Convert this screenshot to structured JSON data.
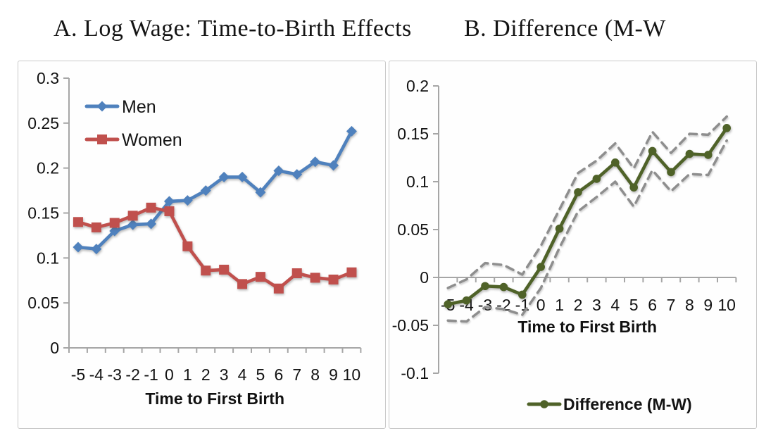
{
  "page": {
    "background": "#ffffff"
  },
  "header": {
    "title_a": "A. Log Wage: Time-to-Birth Effects",
    "title_b": "B. Difference (M-W"
  },
  "colors": {
    "men_blue": "#4F81BD",
    "women_red": "#C0504D",
    "difference_green": "#4F6228",
    "ci_dashed_gray": "#8E8E8E",
    "axis_gray": "#A6A6A6",
    "panel_border": "#C9C9C9",
    "text_black": "#111111"
  },
  "chart_data": [
    {
      "type": "line",
      "panel": "A",
      "title": "A. Log Wage: Time-to-Birth Effects",
      "xlabel": "Time to First Birth",
      "ylabel": "",
      "ylim": [
        0,
        0.3
      ],
      "yticks": [
        0,
        0.05,
        0.1,
        0.15,
        0.2,
        0.25,
        0.3
      ],
      "ytick_labels": [
        "0",
        "0.05",
        "0.1",
        "0.15",
        "0.2",
        "0.25",
        "0.3"
      ],
      "categories": [
        -5,
        -4,
        -3,
        -2,
        -1,
        0,
        1,
        2,
        3,
        4,
        5,
        6,
        7,
        8,
        9,
        10
      ],
      "grid": false,
      "legend_position": "top-left-inside",
      "series": [
        {
          "name": "Men",
          "marker": "diamond",
          "style": "solid",
          "color": "#4F81BD",
          "in_legend": true,
          "values": [
            0.112,
            0.11,
            0.13,
            0.137,
            0.138,
            0.163,
            0.164,
            0.175,
            0.19,
            0.19,
            0.173,
            0.197,
            0.193,
            0.207,
            0.203,
            0.241
          ]
        },
        {
          "name": "Women",
          "marker": "square",
          "style": "solid",
          "color": "#C0504D",
          "in_legend": true,
          "values": [
            0.14,
            0.134,
            0.139,
            0.147,
            0.156,
            0.152,
            0.113,
            0.086,
            0.087,
            0.071,
            0.079,
            0.066,
            0.083,
            0.078,
            0.076,
            0.084
          ]
        }
      ]
    },
    {
      "type": "line",
      "panel": "B",
      "title": "B. Difference (M-W",
      "xlabel": "Time to First Birth",
      "ylabel": "",
      "ylim": [
        -0.1,
        0.2
      ],
      "yticks": [
        -0.1,
        -0.05,
        0,
        0.05,
        0.1,
        0.15,
        0.2
      ],
      "ytick_labels": [
        "-0.1",
        "-0.05",
        "0",
        "0.05",
        "0.1",
        "0.15",
        "0.2"
      ],
      "categories": [
        -5,
        -4,
        -3,
        -2,
        -1,
        0,
        1,
        2,
        3,
        4,
        5,
        6,
        7,
        8,
        9,
        10
      ],
      "grid": false,
      "legend_position": "bottom-center",
      "series": [
        {
          "name": "Difference (M-W)",
          "marker": "circle",
          "style": "solid",
          "color": "#4F6228",
          "in_legend": true,
          "values": [
            -0.028,
            -0.024,
            -0.009,
            -0.01,
            -0.018,
            0.011,
            0.051,
            0.089,
            0.103,
            0.12,
            0.094,
            0.132,
            0.11,
            0.129,
            0.128,
            0.156
          ]
        },
        {
          "name": "Upper 95% CI",
          "marker": "none",
          "style": "dashed",
          "color": "#8E8E8E",
          "in_legend": false,
          "values": [
            -0.011,
            -0.002,
            0.015,
            0.013,
            0.003,
            0.033,
            0.071,
            0.109,
            0.122,
            0.14,
            0.114,
            0.152,
            0.13,
            0.15,
            0.149,
            0.168
          ]
        },
        {
          "name": "Lower 95% CI",
          "marker": "none",
          "style": "dashed",
          "color": "#8E8E8E",
          "in_legend": false,
          "values": [
            -0.045,
            -0.046,
            -0.031,
            -0.033,
            -0.039,
            -0.011,
            0.031,
            0.069,
            0.084,
            0.1,
            0.074,
            0.112,
            0.09,
            0.108,
            0.107,
            0.143
          ]
        }
      ]
    }
  ]
}
